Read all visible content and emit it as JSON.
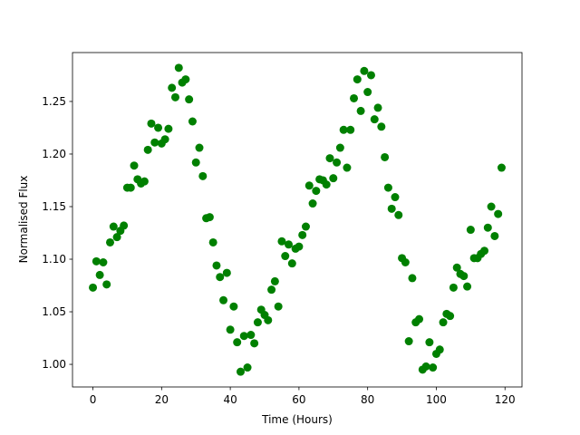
{
  "chart_data": {
    "type": "scatter",
    "xlabel": "Time (Hours)",
    "ylabel": "Normalised Flux",
    "color": "#008000",
    "x": [
      0,
      1,
      2,
      3,
      4,
      5,
      6,
      7,
      8,
      9,
      10,
      11,
      12,
      13,
      14,
      15,
      16,
      17,
      18,
      19,
      20,
      21,
      22,
      23,
      24,
      25,
      26,
      27,
      28,
      29,
      30,
      31,
      32,
      33,
      34,
      35,
      36,
      37,
      38,
      39,
      40,
      41,
      42,
      43,
      44,
      45,
      46,
      47,
      48,
      49,
      50,
      51,
      52,
      53,
      54,
      55,
      56,
      57,
      58,
      59,
      60,
      61,
      62,
      63,
      64,
      65,
      66,
      67,
      68,
      69,
      70,
      71,
      72,
      73,
      74,
      75,
      76,
      77,
      78,
      79,
      80,
      81,
      82,
      83,
      84,
      85,
      86,
      87,
      88,
      89,
      90,
      91,
      92,
      93,
      94,
      95,
      96,
      97,
      98,
      99,
      100,
      101,
      102,
      103,
      104,
      105,
      106,
      107,
      108,
      109,
      110,
      111,
      112,
      113,
      114,
      115,
      116,
      117,
      118,
      119
    ],
    "values": [
      1.073,
      1.098,
      1.085,
      1.097,
      1.076,
      1.116,
      1.131,
      1.121,
      1.127,
      1.132,
      1.168,
      1.168,
      1.189,
      1.176,
      1.172,
      1.174,
      1.204,
      1.229,
      1.211,
      1.225,
      1.21,
      1.214,
      1.224,
      1.263,
      1.254,
      1.282,
      1.268,
      1.271,
      1.252,
      1.231,
      1.192,
      1.206,
      1.179,
      1.139,
      1.14,
      1.116,
      1.094,
      1.083,
      1.061,
      1.087,
      1.033,
      1.055,
      1.021,
      0.993,
      1.027,
      0.997,
      1.028,
      1.02,
      1.04,
      1.052,
      1.047,
      1.042,
      1.071,
      1.079,
      1.055,
      1.117,
      1.103,
      1.114,
      1.096,
      1.11,
      1.112,
      1.123,
      1.131,
      1.17,
      1.153,
      1.165,
      1.176,
      1.175,
      1.171,
      1.196,
      1.177,
      1.192,
      1.206,
      1.223,
      1.187,
      1.223,
      1.253,
      1.271,
      1.241,
      1.279,
      1.259,
      1.275,
      1.233,
      1.244,
      1.226,
      1.197,
      1.168,
      1.148,
      1.159,
      1.142,
      1.101,
      1.097,
      1.022,
      1.082,
      1.04,
      1.043,
      0.995,
      0.998,
      1.021,
      0.997,
      1.01,
      1.014,
      1.04,
      1.048,
      1.046,
      1.073,
      1.092,
      1.086,
      1.084,
      1.074,
      1.128,
      1.101,
      1.101,
      1.105,
      1.108,
      1.13,
      1.15,
      1.122,
      1.143,
      1.187
    ],
    "xlim": [
      -5.95,
      124.95
    ],
    "xticks": [
      0,
      20,
      40,
      60,
      80,
      100,
      120
    ],
    "ylim": [
      0.9785,
      1.2965
    ],
    "yticks": [
      {
        "value": 1.0,
        "label": "1.00"
      },
      {
        "value": 1.05,
        "label": "1.05"
      },
      {
        "value": 1.1,
        "label": "1.10"
      },
      {
        "value": 1.15,
        "label": "1.15"
      },
      {
        "value": 1.2,
        "label": "1.20"
      },
      {
        "value": 1.25,
        "label": "1.25"
      }
    ]
  }
}
